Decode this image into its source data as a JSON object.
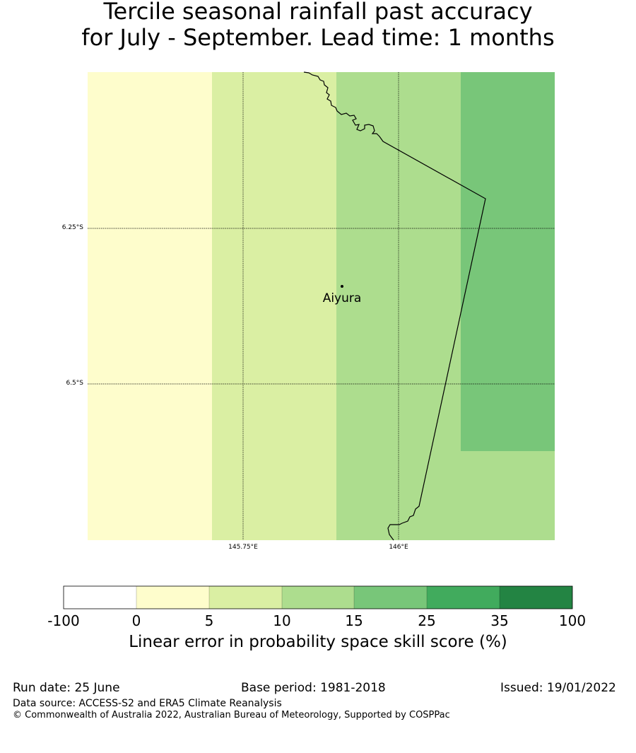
{
  "title": {
    "line1": "Tercile seasonal rainfall past accuracy",
    "line2": "for July - September. Lead time: 1 months"
  },
  "map": {
    "latitude_labels": [
      "6.25°S",
      "6.5°S"
    ],
    "longitude_labels": [
      "145.75°E",
      "146°E"
    ],
    "place": {
      "name": "Aiyura"
    },
    "cell_colors": [
      "#fefdcc",
      "#daefa3",
      "#addd8e",
      "#78c679"
    ]
  },
  "colorbar": {
    "ticks": [
      "-100",
      "0",
      "5",
      "10",
      "15",
      "25",
      "35",
      "100"
    ],
    "colors": [
      "#ffffff",
      "#fefdcc",
      "#daefa3",
      "#addd8e",
      "#78c679",
      "#41ab5d",
      "#238443"
    ],
    "label": "Linear error in probability space skill score (%)"
  },
  "footer": {
    "run_date": "Run date: 25 June",
    "base_period": "Base period: 1981-2018",
    "issued": "Issued: 19/01/2022",
    "data_source": "Data source: ACCESS-S2 and ERA5 Climate Reanalysis",
    "copyright": "© Commonwealth of Australia 2022, Australian Bureau of Meteorology, Supported by COSPPac"
  }
}
